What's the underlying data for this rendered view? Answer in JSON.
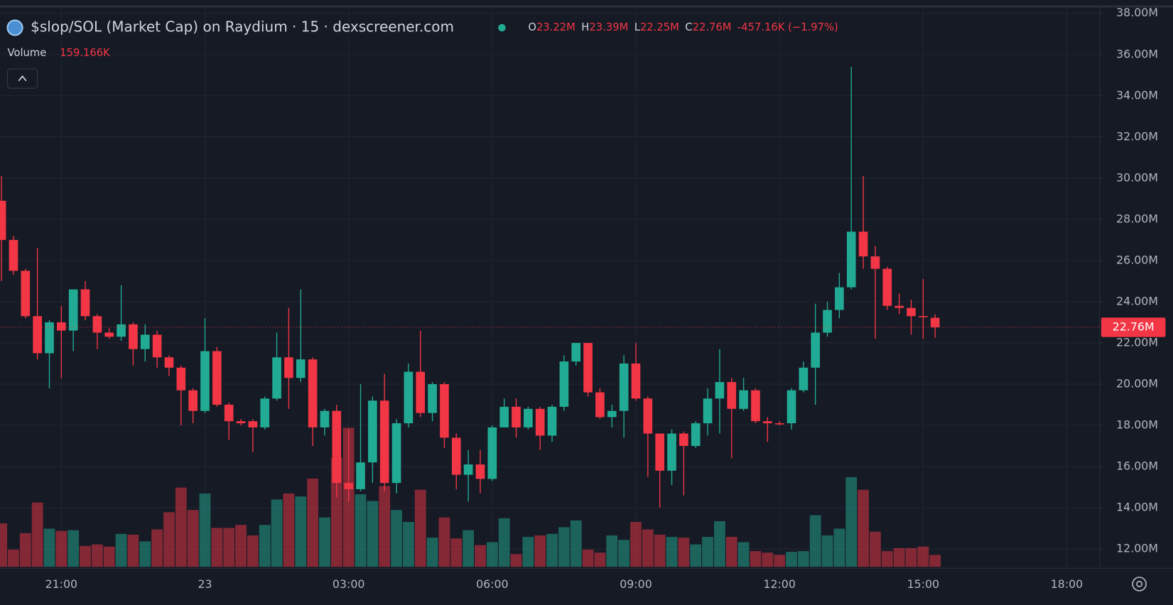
{
  "chart_data": {
    "type": "candlestick",
    "title": "$slop/SOL (Market Cap) on Raydium · 15 · dexscreener.com",
    "ohlc_legend": [
      {
        "key": "O",
        "text": "23.22M"
      },
      {
        "key": "H",
        "text": "23.39M"
      },
      {
        "key": "L",
        "text": "22.25M"
      },
      {
        "key": "C",
        "text": "22.76M"
      }
    ],
    "change_text": "-457.16K (−1.97%)",
    "volume_title": "Volume",
    "volume_text": "159.166K",
    "up_color": "#22ab94",
    "down_color": "#f23645",
    "categories": [
      null,
      null,
      null,
      null,
      null,
      "21:00",
      null,
      null,
      null,
      null,
      null,
      null,
      null,
      null,
      null,
      null,
      null,
      "23",
      null,
      null,
      null,
      null,
      null,
      null,
      null,
      null,
      null,
      null,
      null,
      "03:00",
      null,
      null,
      null,
      null,
      null,
      null,
      null,
      null,
      null,
      null,
      null,
      "06:00",
      null,
      null,
      null,
      null,
      null,
      null,
      null,
      null,
      null,
      null,
      null,
      "09:00",
      null,
      null,
      null,
      null,
      null,
      null,
      null,
      null,
      null,
      null,
      null,
      "12:00",
      null,
      null,
      null,
      null,
      null,
      null,
      null,
      null,
      null,
      null,
      null,
      "15:00",
      null
    ],
    "future_x_labels": [
      "18:00"
    ],
    "open": [
      28.9,
      27.0,
      25.5,
      23.3,
      21.5,
      23.0,
      22.6,
      24.6,
      23.3,
      22.5,
      22.3,
      22.9,
      21.7,
      22.4,
      21.3,
      20.8,
      19.7,
      18.7,
      21.6,
      19.0,
      18.2,
      18.2,
      17.9,
      19.3,
      21.3,
      20.3,
      21.2,
      17.9,
      18.7,
      15.2,
      14.9,
      16.2,
      19.2,
      15.2,
      18.1,
      20.6,
      18.6,
      20.0,
      17.4,
      15.6,
      16.1,
      15.4,
      17.9,
      18.9,
      17.9,
      18.8,
      17.5,
      18.9,
      21.1,
      22.0,
      19.6,
      18.4,
      18.7,
      21.0,
      19.3,
      17.6,
      15.8,
      17.6,
      17.0,
      18.1,
      19.3,
      20.1,
      18.8,
      19.7,
      18.2,
      18.1,
      18.1,
      19.7,
      20.8,
      22.5,
      23.6,
      24.7,
      27.4,
      26.2,
      25.6,
      23.8,
      23.7,
      23.3,
      23.22
    ],
    "high": [
      30.1,
      27.2,
      25.6,
      26.6,
      23.1,
      23.8,
      24.6,
      25.0,
      23.4,
      22.7,
      24.8,
      23.0,
      22.9,
      22.6,
      21.4,
      20.9,
      19.8,
      23.2,
      21.8,
      19.1,
      18.3,
      18.3,
      19.4,
      22.5,
      23.7,
      24.6,
      21.3,
      18.8,
      19.0,
      17.8,
      20.0,
      19.4,
      20.5,
      18.3,
      21.0,
      22.6,
      20.1,
      20.1,
      17.6,
      16.8,
      16.8,
      18.0,
      19.3,
      19.3,
      18.9,
      18.9,
      19.0,
      21.4,
      22.0,
      22.0,
      19.8,
      19.0,
      21.4,
      22.0,
      19.4,
      17.6,
      17.8,
      17.7,
      18.2,
      19.8,
      21.7,
      20.3,
      20.3,
      19.8,
      18.4,
      18.2,
      19.8,
      21.1,
      23.9,
      24.0,
      25.4,
      35.4,
      30.1,
      26.7,
      25.7,
      24.4,
      24.1,
      25.1,
      23.39
    ],
    "low": [
      25.0,
      25.3,
      23.2,
      21.2,
      19.8,
      20.3,
      21.6,
      23.1,
      21.7,
      22.2,
      22.1,
      20.9,
      21.1,
      20.8,
      20.4,
      18.0,
      18.1,
      18.6,
      18.9,
      17.3,
      18.0,
      16.7,
      17.8,
      19.2,
      18.8,
      20.1,
      17.0,
      17.5,
      14.5,
      14.3,
      14.8,
      15.2,
      14.8,
      14.7,
      17.9,
      18.4,
      18.2,
      16.9,
      14.9,
      14.3,
      14.7,
      15.3,
      17.9,
      17.4,
      17.8,
      16.8,
      17.2,
      18.7,
      20.9,
      19.4,
      18.3,
      17.9,
      17.4,
      19.2,
      15.5,
      14.0,
      15.1,
      14.6,
      16.9,
      17.5,
      17.6,
      16.4,
      18.7,
      18.1,
      17.2,
      18.0,
      17.8,
      19.6,
      19.0,
      22.3,
      23.2,
      24.6,
      25.6,
      22.2,
      23.6,
      23.4,
      22.4,
      22.2,
      22.25
    ],
    "close": [
      27.0,
      25.5,
      23.3,
      21.5,
      23.0,
      22.6,
      24.6,
      23.3,
      22.5,
      22.3,
      22.9,
      21.7,
      22.4,
      21.3,
      20.8,
      19.7,
      18.7,
      21.6,
      19.0,
      18.2,
      18.1,
      17.9,
      19.3,
      21.3,
      20.3,
      21.2,
      17.9,
      18.7,
      15.2,
      14.9,
      16.2,
      19.2,
      15.2,
      18.1,
      20.6,
      18.6,
      20.0,
      17.4,
      15.6,
      16.1,
      15.4,
      17.9,
      18.9,
      17.9,
      18.8,
      17.5,
      18.9,
      21.1,
      22.0,
      19.6,
      18.4,
      18.7,
      21.0,
      19.3,
      17.6,
      15.8,
      17.6,
      17.0,
      18.1,
      19.3,
      20.1,
      18.8,
      19.7,
      18.2,
      18.1,
      18.05,
      19.7,
      20.8,
      22.5,
      23.6,
      24.7,
      27.4,
      26.2,
      25.6,
      23.8,
      23.7,
      23.3,
      23.25,
      22.76
    ],
    "volume": [
      580,
      230,
      450,
      860,
      510,
      480,
      490,
      280,
      300,
      270,
      440,
      430,
      340,
      500,
      730,
      1060,
      760,
      980,
      520,
      520,
      560,
      420,
      560,
      900,
      980,
      940,
      1180,
      660,
      1460,
      1860,
      970,
      880,
      1080,
      760,
      600,
      1030,
      390,
      660,
      380,
      490,
      290,
      330,
      650,
      170,
      400,
      420,
      440,
      530,
      620,
      230,
      190,
      420,
      360,
      600,
      500,
      430,
      400,
      390,
      300,
      400,
      610,
      400,
      330,
      210,
      190,
      160,
      200,
      210,
      690,
      420,
      510,
      1200,
      1030,
      470,
      210,
      250,
      250,
      270,
      159.166
    ],
    "last_price": {
      "value": 22.76,
      "label": "22.76M"
    },
    "ylim": [
      11.06,
      38.28
    ],
    "yticks": [
      {
        "value": 12,
        "label": "12.00M"
      },
      {
        "value": 14,
        "label": "14.00M"
      },
      {
        "value": 16,
        "label": "16.00M"
      },
      {
        "value": 18,
        "label": "18.00M"
      },
      {
        "value": 20,
        "label": "20.00M"
      },
      {
        "value": 22,
        "label": "22.00M"
      },
      {
        "value": 24,
        "label": "24.00M"
      },
      {
        "value": 26,
        "label": "26.00M"
      },
      {
        "value": 28,
        "label": "28.00M"
      },
      {
        "value": 30,
        "label": "30.00M"
      },
      {
        "value": 32,
        "label": "32.00M"
      },
      {
        "value": 34,
        "label": "34.00M"
      },
      {
        "value": 36,
        "label": "36.00M"
      },
      {
        "value": 38,
        "label": "38.00M"
      }
    ],
    "grid": true
  }
}
